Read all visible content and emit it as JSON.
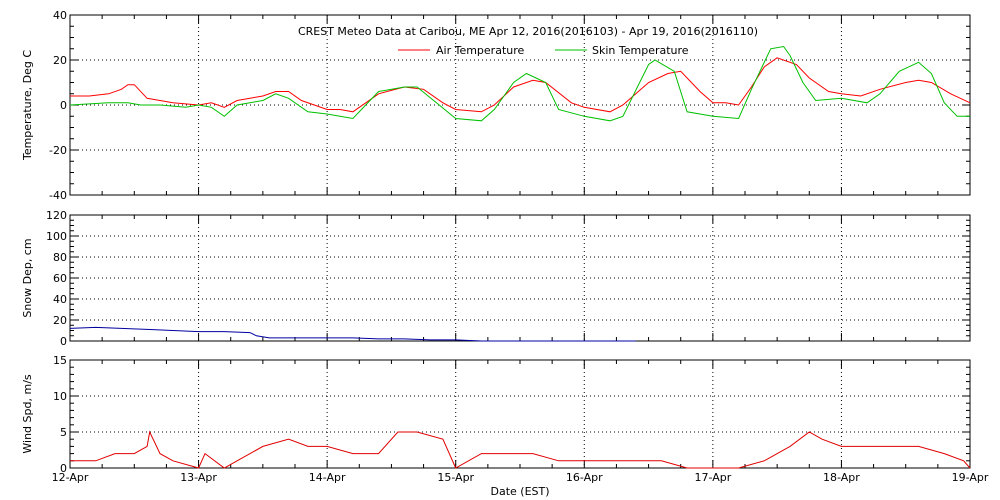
{
  "title": "CREST Meteo Data at Caribou, ME   Apr 12, 2016(2016103) - Apr 19, 2016(2016110)",
  "xlabel": "Date (EST)",
  "x_tick_labels": [
    "12-Apr",
    "13-Apr",
    "14-Apr",
    "15-Apr",
    "16-Apr",
    "17-Apr",
    "18-Apr",
    "19-Apr"
  ],
  "colors": {
    "air": "#ff0000",
    "skin": "#00c000",
    "snow": "#0000a0",
    "wind": "#e00000"
  },
  "chart_data": [
    {
      "type": "line",
      "ylabel": "Temperature, Deg C",
      "ylim": [
        -40,
        40
      ],
      "yticks": [
        -40,
        -20,
        0,
        20,
        40
      ],
      "xlim": [
        0,
        7
      ],
      "x_unit": "days since 12-Apr 00:00 EST",
      "grid": true,
      "legend_placement": "top-center",
      "series": [
        {
          "name": "Air Temperature",
          "color": "#ff0000",
          "x": [
            0.0,
            0.15,
            0.3,
            0.4,
            0.45,
            0.5,
            0.6,
            0.7,
            0.8,
            1.0,
            1.1,
            1.2,
            1.3,
            1.5,
            1.6,
            1.7,
            1.8,
            2.0,
            2.1,
            2.2,
            2.4,
            2.6,
            2.75,
            2.9,
            3.0,
            3.2,
            3.3,
            3.45,
            3.6,
            3.7,
            3.9,
            4.0,
            4.2,
            4.3,
            4.5,
            4.65,
            4.75,
            4.9,
            5.0,
            5.1,
            5.2,
            5.3,
            5.4,
            5.5,
            5.65,
            5.75,
            5.9,
            6.0,
            6.15,
            6.3,
            6.5,
            6.6,
            6.7,
            6.85,
            7.0
          ],
          "values": [
            4,
            4,
            5,
            7,
            9,
            9,
            3,
            2,
            1,
            0,
            1,
            -1,
            2,
            4,
            6,
            6,
            2,
            -2,
            -2,
            -3,
            5,
            8,
            7,
            1,
            -2,
            -3,
            0,
            8,
            11,
            10,
            1,
            -1,
            -3,
            0,
            10,
            14,
            15,
            6,
            1,
            1,
            0,
            8,
            17,
            21,
            18,
            12,
            6,
            5,
            4,
            7,
            10,
            11,
            10,
            5,
            1
          ]
        },
        {
          "name": "Skin Temperature",
          "color": "#00c000",
          "x": [
            0.0,
            0.3,
            0.45,
            0.55,
            0.7,
            0.9,
            1.0,
            1.1,
            1.2,
            1.3,
            1.5,
            1.6,
            1.7,
            1.85,
            2.0,
            2.1,
            2.2,
            2.4,
            2.6,
            2.7,
            2.85,
            3.0,
            3.2,
            3.3,
            3.45,
            3.55,
            3.7,
            3.8,
            4.0,
            4.2,
            4.3,
            4.5,
            4.55,
            4.7,
            4.8,
            5.0,
            5.2,
            5.3,
            5.45,
            5.55,
            5.6,
            5.7,
            5.8,
            6.0,
            6.2,
            6.3,
            6.45,
            6.6,
            6.7,
            6.8,
            6.9,
            7.0
          ],
          "values": [
            0,
            1,
            1,
            0,
            0,
            -1,
            0,
            -1,
            -5,
            0,
            2,
            5,
            3,
            -3,
            -4,
            -5,
            -6,
            6,
            8,
            8,
            1,
            -6,
            -7,
            -2,
            10,
            14,
            10,
            -2,
            -5,
            -7,
            -5,
            18,
            20,
            15,
            -3,
            -5,
            -6,
            7,
            25,
            26,
            22,
            10,
            2,
            3,
            1,
            5,
            15,
            19,
            14,
            1,
            -5,
            -5
          ]
        }
      ]
    },
    {
      "type": "line",
      "ylabel": "Snow Dep, cm",
      "ylim": [
        0,
        120
      ],
      "yticks": [
        0,
        20,
        40,
        60,
        80,
        100,
        120
      ],
      "xlim": [
        0,
        7
      ],
      "grid": true,
      "series": [
        {
          "color": "#0000a0",
          "x": [
            0.0,
            0.2,
            0.4,
            0.6,
            0.8,
            1.0,
            1.2,
            1.4,
            1.45,
            1.55,
            1.7,
            2.0,
            2.2,
            2.4,
            2.6,
            2.8,
            3.0,
            3.2,
            3.4,
            3.6,
            3.8,
            4.0,
            4.2,
            4.4
          ],
          "values": [
            12,
            13,
            12,
            11,
            10,
            9,
            9,
            8,
            5,
            3,
            3,
            3,
            3,
            2,
            2,
            1,
            1,
            0,
            0,
            0,
            0,
            0,
            0,
            0
          ]
        }
      ]
    },
    {
      "type": "line",
      "ylabel": "Wind Spd, m/s",
      "ylim": [
        0,
        15
      ],
      "yticks": [
        0,
        5,
        10,
        15
      ],
      "xlim": [
        0,
        7
      ],
      "grid": true,
      "series": [
        {
          "color": "#e00000",
          "x": [
            0.0,
            0.2,
            0.35,
            0.5,
            0.6,
            0.62,
            0.7,
            0.8,
            1.0,
            1.05,
            1.2,
            1.3,
            1.5,
            1.7,
            1.85,
            2.0,
            2.2,
            2.4,
            2.55,
            2.7,
            2.9,
            3.0,
            3.2,
            3.4,
            3.6,
            3.8,
            4.0,
            4.2,
            4.4,
            4.6,
            4.8,
            5.0,
            5.2,
            5.4,
            5.6,
            5.75,
            5.85,
            6.0,
            6.2,
            6.4,
            6.6,
            6.8,
            6.95,
            7.0
          ],
          "values": [
            1,
            1,
            2,
            2,
            3,
            5,
            2,
            1,
            0,
            2,
            0,
            1,
            3,
            4,
            3,
            3,
            2,
            2,
            5,
            5,
            4,
            0,
            2,
            2,
            2,
            1,
            1,
            1,
            1,
            1,
            0,
            0,
            0,
            1,
            3,
            5,
            4,
            3,
            3,
            3,
            3,
            2,
            1,
            0
          ]
        }
      ]
    }
  ]
}
